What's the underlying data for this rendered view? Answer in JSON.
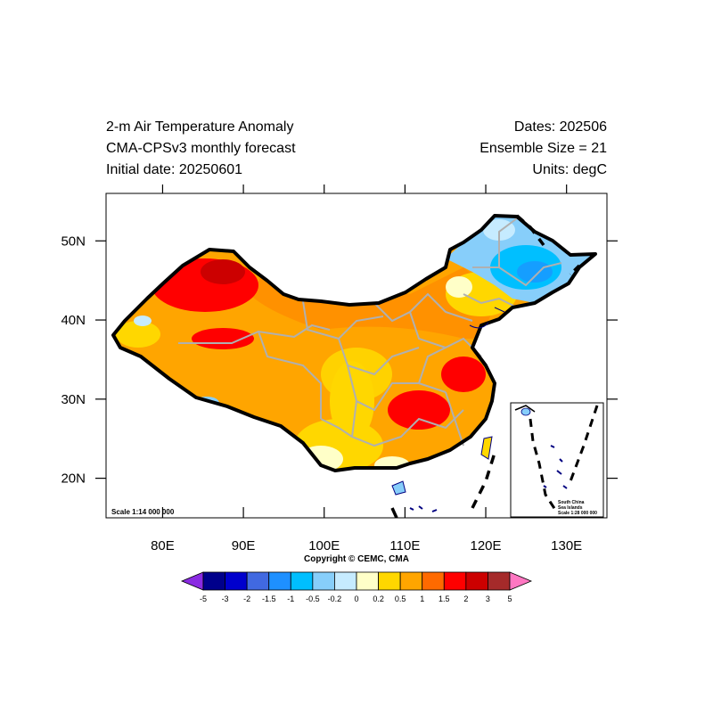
{
  "header": {
    "title": "2-m Air Temperature Anomaly",
    "model": "CMA-CPSv3 monthly forecast",
    "initial_date": "Initial date: 20250601",
    "dates": "Dates: 202506",
    "ensemble": "Ensemble Size = 21",
    "units": "Units: degC"
  },
  "map": {
    "scale_main": "Scale 1:14 000 000",
    "inset_title_1": "South China",
    "inset_title_2": "Sea Islands",
    "inset_scale": "Scale 1:28 000 000",
    "copyright": "Copyright © CEMC, CMA",
    "lon_range": [
      73,
      135
    ],
    "lat_range": [
      15,
      56
    ],
    "x_ticks": [
      "80E",
      "90E",
      "100E",
      "110E",
      "120E",
      "130E"
    ],
    "y_ticks": [
      "20N",
      "30N",
      "40N",
      "50N"
    ]
  },
  "colorbar": {
    "levels": [
      "-5",
      "-3",
      "-2",
      "-1.5",
      "-1",
      "-0.5",
      "-0.2",
      "0",
      "0.2",
      "0.5",
      "1",
      "1.5",
      "2",
      "3",
      "5"
    ],
    "colors": [
      "#8a2be2",
      "#00008b",
      "#0000cd",
      "#4169e1",
      "#1e90ff",
      "#00bfff",
      "#87cefa",
      "#c6ebff",
      "#ffffc8",
      "#ffd700",
      "#ffa500",
      "#ff6a00",
      "#ff0000",
      "#cc0000",
      "#a52a2a",
      "#ff77c2"
    ]
  }
}
